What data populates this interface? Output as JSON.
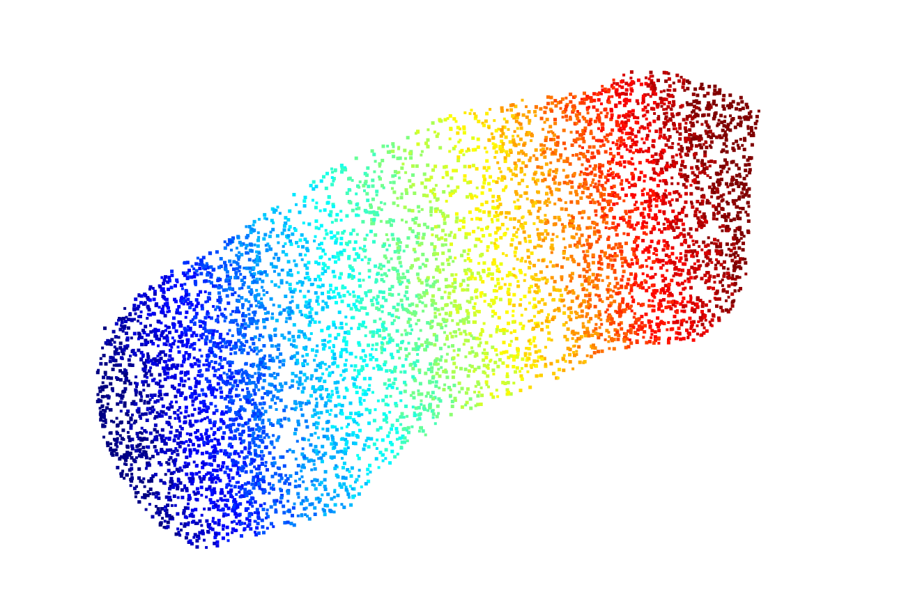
{
  "figure": {
    "kind": "3d-point-cloud",
    "colormap": "jet",
    "colormap_stops": [
      "#00007f",
      "#0000ff",
      "#007fff",
      "#00ffff",
      "#7fff7f",
      "#ffff00",
      "#ff7f00",
      "#ff0000",
      "#7f0000"
    ],
    "background_color": "#ffffff",
    "axes_visible": false,
    "grid": false,
    "legend": "none",
    "colorbar": "none"
  }
}
